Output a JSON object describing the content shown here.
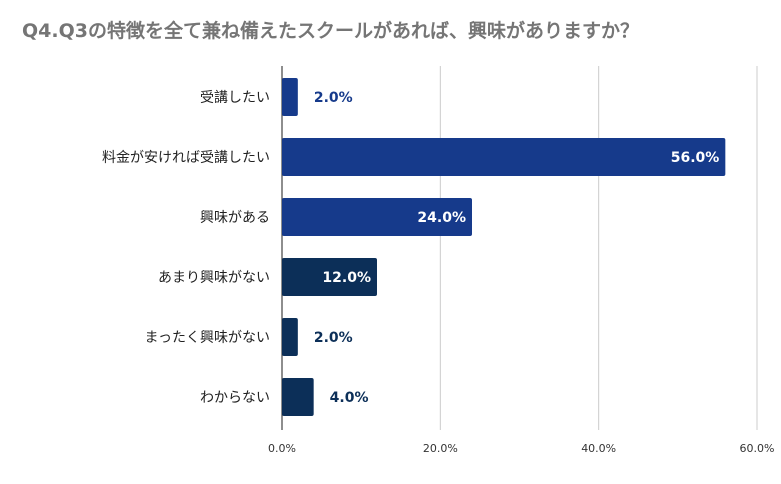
{
  "chart_data": {
    "type": "bar",
    "orientation": "horizontal",
    "title": "Q4.Q3の特徴を全て兼ね備えたスクールがあれば、興味がありますか？",
    "categories": [
      "受講したい",
      "料金が安ければ受講したい",
      "興味がある",
      "あまり興味がない",
      "まったく興味がない",
      "わからない"
    ],
    "values": [
      2.0,
      56.0,
      24.0,
      12.0,
      2.0,
      4.0
    ],
    "data_labels": [
      "2.0%",
      "56.0%",
      "24.0%",
      "12.0%",
      "2.0%",
      "4.0%"
    ],
    "bar_colors": [
      "#163A8B",
      "#163A8B",
      "#163A8B",
      "#0C2F58",
      "#0C2F58",
      "#0C2F58"
    ],
    "label_colors_outside": [
      "#163A8B",
      "#163A8B",
      "#163A8B",
      "#0C2F58",
      "#0C2F58",
      "#0C2F58"
    ],
    "xlim": [
      0,
      60
    ],
    "x_ticks": [
      0,
      20,
      40,
      60
    ],
    "x_tick_labels": [
      "0.0%",
      "20.0%",
      "40.0%",
      "60.0%"
    ],
    "xlabel": "",
    "ylabel": "",
    "grid": true,
    "legend": "none"
  }
}
